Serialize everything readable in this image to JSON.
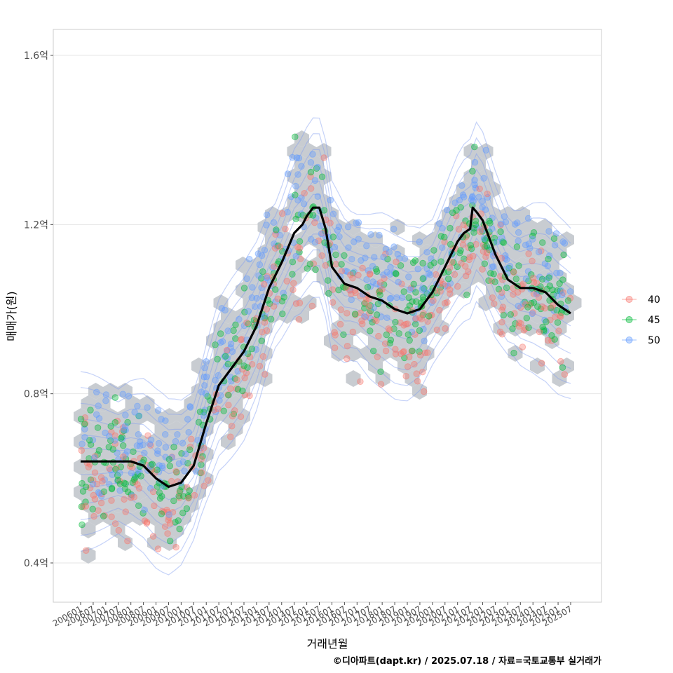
{
  "chart_data": {
    "type": "scatter",
    "xlabel": "거래년월",
    "ylabel": "매매가(원)",
    "caption": "©디아파트(dapt.kr) / 2025.07.18 / 자료=국토교통부 실거래가",
    "y_unit": "억",
    "ylim": [
      0.3,
      1.66
    ],
    "y_ticks": [
      {
        "value": 0.4,
        "label": "0.4억"
      },
      {
        "value": 0.8,
        "label": "0.8억"
      },
      {
        "value": 1.2,
        "label": "1.2억"
      },
      {
        "value": 1.6,
        "label": "1.6억"
      }
    ],
    "x_ticks": [
      "200601",
      "200607",
      "200701",
      "200707",
      "200801",
      "200807",
      "200901",
      "200907",
      "201001",
      "201007",
      "201101",
      "201107",
      "201201",
      "201207",
      "201301",
      "201307",
      "201401",
      "201407",
      "201501",
      "201507",
      "201601",
      "201607",
      "201701",
      "201707",
      "201801",
      "201807",
      "201901",
      "201907",
      "202001",
      "202007",
      "202101",
      "202107",
      "202201",
      "202207",
      "202301",
      "202307",
      "202401",
      "202407",
      "202501",
      "202507"
    ],
    "grid": true,
    "legend_position": "right",
    "series": [
      {
        "name": "40",
        "color": "#F8766D"
      },
      {
        "name": "45",
        "color": "#00BA38"
      },
      {
        "name": "50",
        "color": "#619CFF"
      }
    ],
    "trend_line": {
      "color": "#000000",
      "x": [
        2006.0,
        2007.0,
        2007.5,
        2008.0,
        2008.5,
        2009.0,
        2009.5,
        2010.0,
        2010.5,
        2011.0,
        2011.5,
        2012.0,
        2012.5,
        2013.0,
        2013.5,
        2014.0,
        2014.5,
        2014.83,
        2015.0,
        2015.25,
        2015.5,
        2015.75,
        2016.0,
        2016.5,
        2017.0,
        2017.5,
        2018.0,
        2018.5,
        2019.0,
        2019.5,
        2020.0,
        2020.5,
        2021.0,
        2021.25,
        2021.5,
        2021.6,
        2021.75,
        2022.0,
        2022.5,
        2023.0,
        2023.5,
        2024.0,
        2024.5,
        2025.0,
        2025.5
      ],
      "y": [
        0.64,
        0.64,
        0.64,
        0.64,
        0.63,
        0.6,
        0.58,
        0.59,
        0.63,
        0.73,
        0.82,
        0.86,
        0.9,
        0.96,
        1.05,
        1.11,
        1.18,
        1.2,
        1.22,
        1.24,
        1.24,
        1.19,
        1.1,
        1.06,
        1.05,
        1.03,
        1.02,
        1.0,
        0.99,
        1.0,
        1.04,
        1.1,
        1.16,
        1.18,
        1.19,
        1.24,
        1.23,
        1.21,
        1.13,
        1.07,
        1.05,
        1.05,
        1.04,
        1.01,
        0.99
      ]
    }
  }
}
